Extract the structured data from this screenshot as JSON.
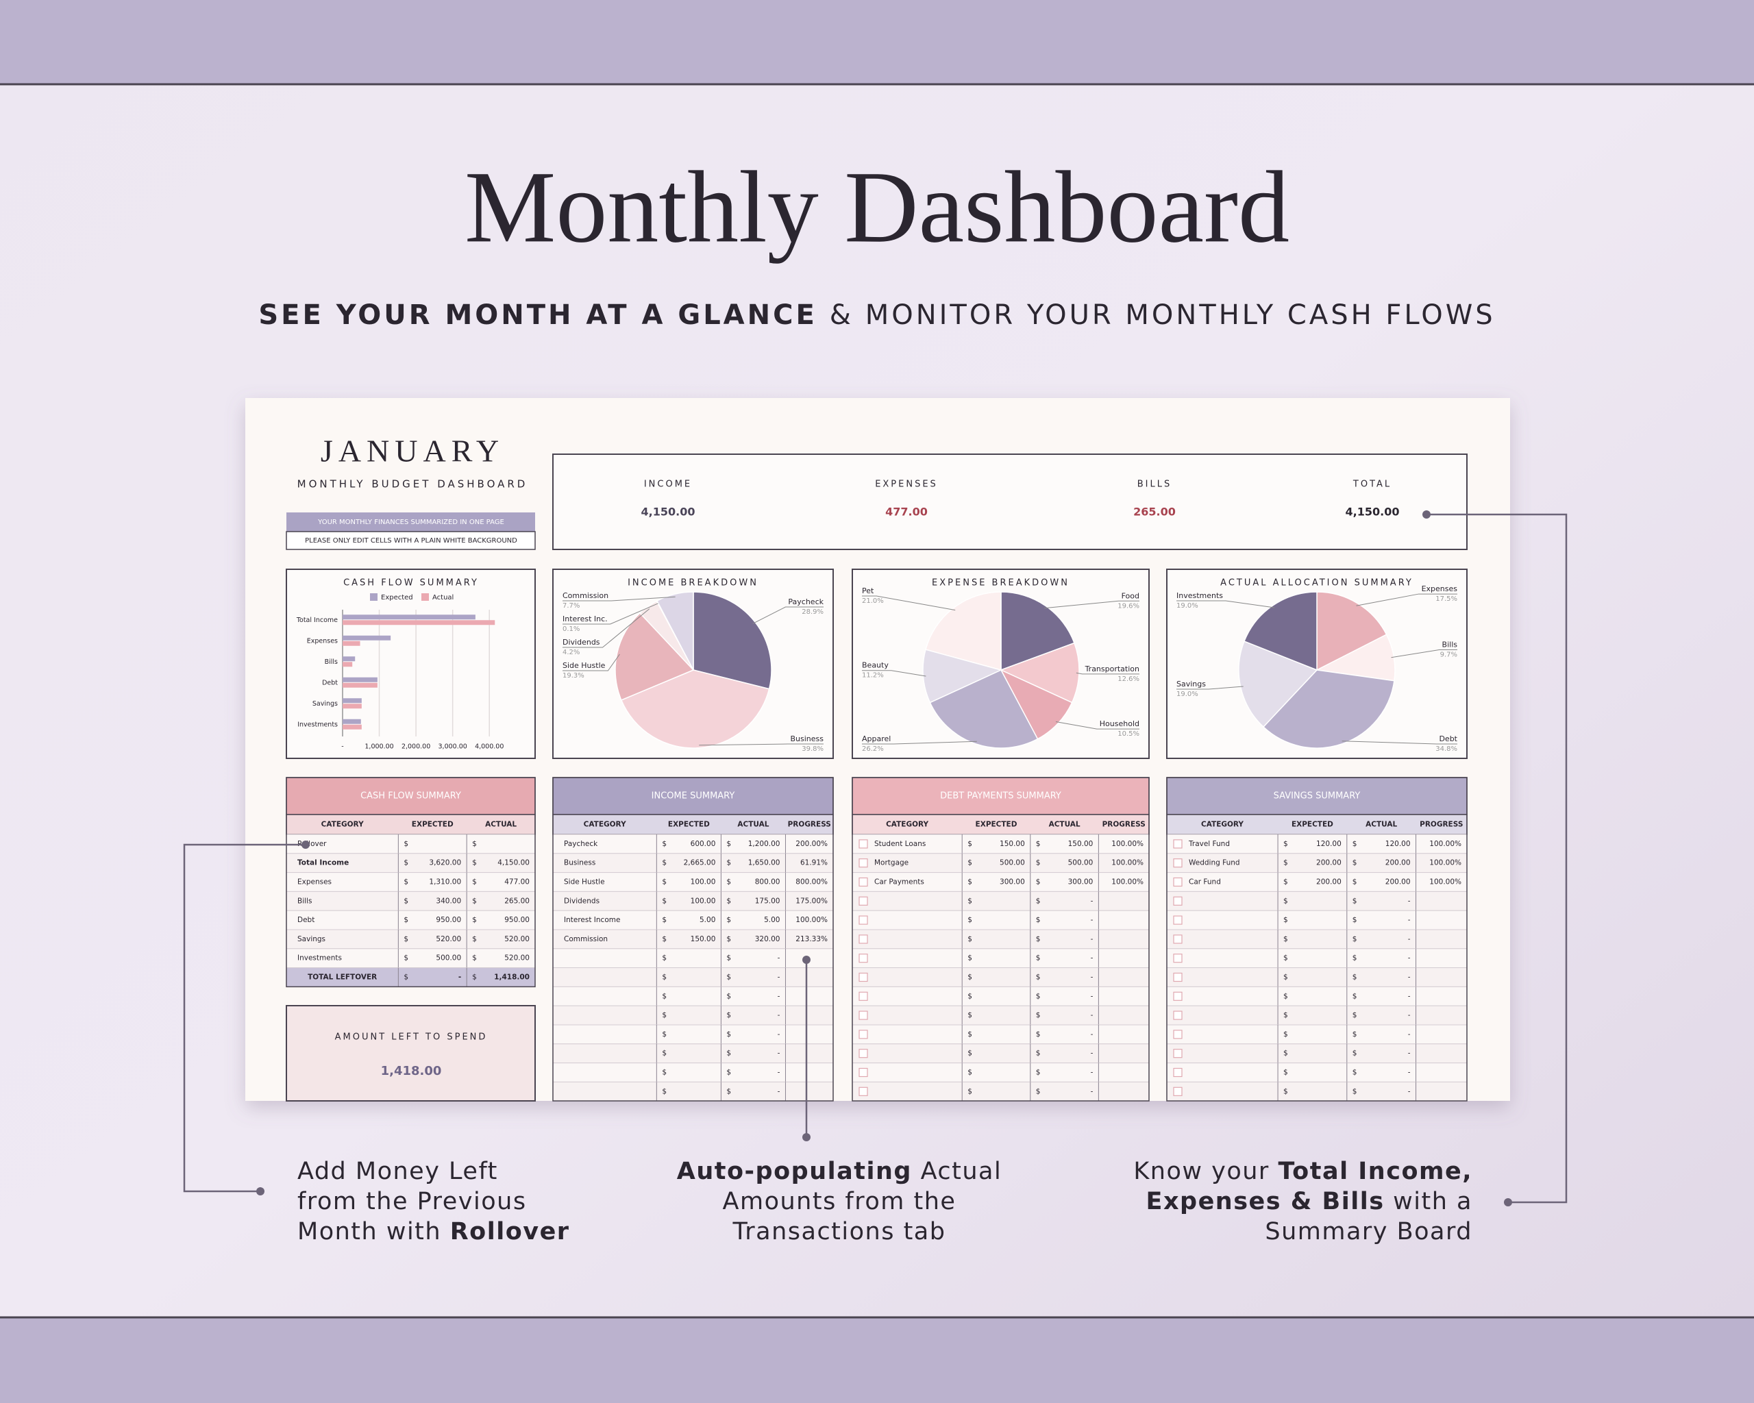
{
  "header": {
    "title": "Monthly Dashboard",
    "subtitle_bold": "SEE YOUR MONTH AT A GLANCE",
    "subtitle_rest": "& MONITOR YOUR MONTHLY CASH FLOWS"
  },
  "dashboard": {
    "month": "JANUARY",
    "subtitle": "MONTHLY BUDGET DASHBOARD",
    "note_banner": "YOUR MONTHLY FINANCES SUMMARIZED IN ONE PAGE",
    "note": "PLEASE ONLY EDIT CELLS WITH A PLAIN WHITE BACKGROUND",
    "currency": "$",
    "summary": [
      {
        "label": "INCOME",
        "value": "4,150.00",
        "color": "#4a4458"
      },
      {
        "label": "EXPENSES",
        "value": "477.00",
        "color": "#a8434f"
      },
      {
        "label": "BILLS",
        "value": "265.00",
        "color": "#a8434f"
      },
      {
        "label": "TOTAL",
        "value": "4,150.00",
        "color": "#2b2630"
      }
    ],
    "cash_flow_chart": {
      "type": "bar",
      "title": "CASH FLOW SUMMARY",
      "categories": [
        "Total Income",
        "Expenses",
        "Bills",
        "Debt",
        "Savings",
        "Investments"
      ],
      "series": [
        {
          "name": "Expected",
          "color": "#aca4c6",
          "values": [
            3620,
            1310,
            340,
            950,
            520,
            500
          ]
        },
        {
          "name": "Actual",
          "color": "#eba9b1",
          "values": [
            4150,
            477,
            265,
            950,
            520,
            520
          ]
        }
      ],
      "xlim": [
        0,
        4500
      ],
      "xticks": [
        {
          "value": 0,
          "label": "-"
        },
        {
          "value": 1000,
          "label": "1,000.00"
        },
        {
          "value": 2000,
          "label": "2,000.00"
        },
        {
          "value": 3000,
          "label": "3,000.00"
        },
        {
          "value": 4000,
          "label": "4,000.00"
        }
      ],
      "grid": true
    },
    "income_chart": {
      "type": "pie",
      "title": "INCOME BREAKDOWN",
      "categories": [
        "Paycheck",
        "Business",
        "Side Hustle",
        "Dividends",
        "Interest Inc.",
        "Commission"
      ],
      "values": [
        28.9,
        39.8,
        19.3,
        4.2,
        0.1,
        7.7
      ],
      "value_labels": [
        "28.9%",
        "39.8%",
        "19.3%",
        "4.2%",
        "0.1%",
        "7.7%"
      ],
      "colors": [
        "#766c8f",
        "#f4d3d8",
        "#e8b5bb",
        "#f7e9ea",
        "#c9c2d8",
        "#dcd6e6"
      ]
    },
    "expense_chart": {
      "type": "pie",
      "title": "EXPENSE BREAKDOWN",
      "categories": [
        "Food",
        "Transportation",
        "Household",
        "Apparel",
        "Beauty",
        "Pet"
      ],
      "values": [
        19.6,
        12.6,
        10.5,
        26.2,
        11.2,
        21.0
      ],
      "value_labels": [
        "19.6%",
        "12.6%",
        "10.5%",
        "26.2%",
        "11.2%",
        "21.0%"
      ],
      "colors": [
        "#766c8f",
        "#f3c9ce",
        "#e8abb4",
        "#b9b1cc",
        "#e3deea",
        "#fcefef"
      ]
    },
    "allocation_chart": {
      "type": "pie",
      "title": "ACTUAL ALLOCATION SUMMARY",
      "categories": [
        "Expenses",
        "Bills",
        "Debt",
        "Savings",
        "Investments"
      ],
      "values": [
        17.5,
        9.7,
        34.8,
        19.0,
        19.0
      ],
      "value_labels": [
        "17.5%",
        "9.7%",
        "34.8%",
        "19.0%",
        "19.0%"
      ],
      "colors": [
        "#e8b1b8",
        "#fcefef",
        "#b9b1cc",
        "#e3deea",
        "#766c8f"
      ]
    },
    "cash_flow_table": {
      "title": "CASH FLOW SUMMARY",
      "header_color": "#e6aab1",
      "sub_color": "#f2d9dc",
      "columns": [
        "CATEGORY",
        "EXPECTED",
        "ACTUAL"
      ],
      "rows": [
        [
          "Rollover",
          null,
          null
        ],
        [
          "Total Income",
          "3,620.00",
          "4,150.00"
        ],
        [
          "Expenses",
          "1,310.00",
          "477.00"
        ],
        [
          "Bills",
          "340.00",
          "265.00"
        ],
        [
          "Debt",
          "950.00",
          "950.00"
        ],
        [
          "Savings",
          "520.00",
          "520.00"
        ],
        [
          "Investments",
          "500.00",
          "520.00"
        ]
      ],
      "footer": [
        "TOTAL LEFTOVER",
        "-",
        "1,418.00"
      ]
    },
    "income_table": {
      "title": "INCOME SUMMARY",
      "header_color": "#aba3c3",
      "sub_color": "#dcd7e6",
      "columns": [
        "CATEGORY",
        "EXPECTED",
        "ACTUAL",
        "PROGRESS"
      ],
      "rows": [
        [
          "Paycheck",
          "600.00",
          "1,200.00",
          "200.00%"
        ],
        [
          "Business",
          "2,665.00",
          "1,650.00",
          "61.91%"
        ],
        [
          "Side Hustle",
          "100.00",
          "800.00",
          "800.00%"
        ],
        [
          "Dividends",
          "100.00",
          "175.00",
          "175.00%"
        ],
        [
          "Interest Income",
          "5.00",
          "5.00",
          "100.00%"
        ],
        [
          "Commission",
          "150.00",
          "320.00",
          "213.33%"
        ],
        [
          null,
          null,
          "-",
          null
        ],
        [
          null,
          null,
          "-",
          null
        ],
        [
          null,
          null,
          "-",
          null
        ],
        [
          null,
          null,
          "-",
          null
        ],
        [
          null,
          null,
          "-",
          null
        ],
        [
          null,
          null,
          "-",
          null
        ],
        [
          null,
          null,
          "-",
          null
        ],
        [
          null,
          null,
          "-",
          null
        ]
      ]
    },
    "debt_table": {
      "title": "DEBT PAYMENTS SUMMARY",
      "header_color": "#ebb3ba",
      "sub_color": "#f4dadd",
      "checkbox": true,
      "columns": [
        "CATEGORY",
        "EXPECTED",
        "ACTUAL",
        "PROGRESS"
      ],
      "rows": [
        [
          "Student Loans",
          "150.00",
          "150.00",
          "100.00%"
        ],
        [
          "Mortgage",
          "500.00",
          "500.00",
          "100.00%"
        ],
        [
          "Car Payments",
          "300.00",
          "300.00",
          "100.00%"
        ],
        [
          null,
          null,
          "-",
          null
        ],
        [
          null,
          null,
          "-",
          null
        ],
        [
          null,
          null,
          "-",
          null
        ],
        [
          null,
          null,
          "-",
          null
        ],
        [
          null,
          null,
          "-",
          null
        ],
        [
          null,
          null,
          "-",
          null
        ],
        [
          null,
          null,
          "-",
          null
        ],
        [
          null,
          null,
          "-",
          null
        ],
        [
          null,
          null,
          "-",
          null
        ],
        [
          null,
          null,
          "-",
          null
        ],
        [
          null,
          null,
          "-",
          null
        ]
      ]
    },
    "savings_table": {
      "title": "SAVINGS SUMMARY",
      "header_color": "#b2abc8",
      "sub_color": "#dedae8",
      "checkbox": true,
      "columns": [
        "CATEGORY",
        "EXPECTED",
        "ACTUAL",
        "PROGRESS"
      ],
      "rows": [
        [
          "Travel Fund",
          "120.00",
          "120.00",
          "100.00%"
        ],
        [
          "Wedding Fund",
          "200.00",
          "200.00",
          "100.00%"
        ],
        [
          "Car Fund",
          "200.00",
          "200.00",
          "100.00%"
        ],
        [
          null,
          null,
          "-",
          null
        ],
        [
          null,
          null,
          "-",
          null
        ],
        [
          null,
          null,
          "-",
          null
        ],
        [
          null,
          null,
          "-",
          null
        ],
        [
          null,
          null,
          "-",
          null
        ],
        [
          null,
          null,
          "-",
          null
        ],
        [
          null,
          null,
          "-",
          null
        ],
        [
          null,
          null,
          "-",
          null
        ],
        [
          null,
          null,
          "-",
          null
        ],
        [
          null,
          null,
          "-",
          null
        ],
        [
          null,
          null,
          "-",
          null
        ]
      ]
    },
    "left_to_spend": {
      "label": "AMOUNT LEFT TO SPEND",
      "value": "1,418.00"
    }
  },
  "callouts": [
    {
      "lines": [
        [
          {
            "text": "Add Money Left"
          }
        ],
        [
          {
            "text": "from the Previous"
          }
        ],
        [
          {
            "text": "Month with "
          },
          {
            "text": "Rollover",
            "bold": true
          }
        ]
      ]
    },
    {
      "lines": [
        [
          {
            "text": "Auto-populating",
            "bold": true
          },
          {
            "text": " Actual"
          }
        ],
        [
          {
            "text": "Amounts from the"
          }
        ],
        [
          {
            "text": "Transactions tab"
          }
        ]
      ]
    },
    {
      "lines": [
        [
          {
            "text": "Know your "
          },
          {
            "text": "Total Income,",
            "bold": true
          }
        ],
        [
          {
            "text": "Expenses & Bills",
            "bold": true
          },
          {
            "text": " with a"
          }
        ],
        [
          {
            "text": "Summary Board"
          }
        ]
      ]
    }
  ]
}
